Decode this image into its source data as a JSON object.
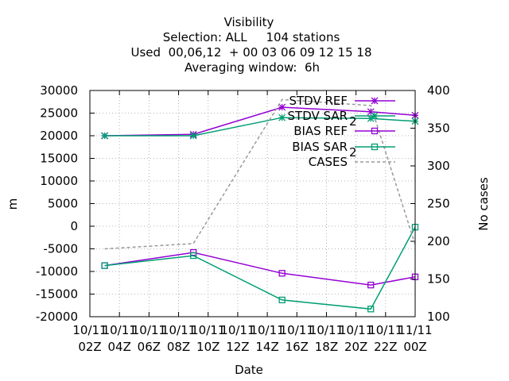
{
  "chart_data": {
    "type": "line",
    "title_lines": [
      "Visibility",
      "Selection: ALL     104 stations",
      "Used  00,06,12  + 00 03 06 09 12 15 18",
      "Averaging window:  6h"
    ],
    "xlabel": "Date",
    "ylabel": "m",
    "y2label": "No cases",
    "xlim": [
      1,
      23
    ],
    "ylim": [
      -20000,
      30000
    ],
    "y2lim": [
      100,
      400
    ],
    "grid": true,
    "legend_position": "top-right",
    "x_ticks": [
      {
        "x": 1,
        "line1": "10/11",
        "line2": "02Z"
      },
      {
        "x": 3,
        "line1": "10/11",
        "line2": "04Z"
      },
      {
        "x": 5,
        "line1": "10/11",
        "line2": "06Z"
      },
      {
        "x": 7,
        "line1": "10/11",
        "line2": "08Z"
      },
      {
        "x": 9,
        "line1": "10/11",
        "line2": "10Z"
      },
      {
        "x": 11,
        "line1": "10/11",
        "line2": "12Z"
      },
      {
        "x": 13,
        "line1": "10/11",
        "line2": "14Z"
      },
      {
        "x": 15,
        "line1": "10/11",
        "line2": "16Z"
      },
      {
        "x": 17,
        "line1": "10/11",
        "line2": "18Z"
      },
      {
        "x": 19,
        "line1": "10/11",
        "line2": "20Z"
      },
      {
        "x": 21,
        "line1": "10/11",
        "line2": "22Z"
      },
      {
        "x": 23,
        "line1": "11/11",
        "line2": "00Z"
      }
    ],
    "y_ticks": [
      "30000",
      "25000",
      "20000",
      "15000",
      "10000",
      "5000",
      "0",
      "-5000",
      "-10000",
      "-15000",
      "-20000"
    ],
    "y_tick_values": [
      30000,
      25000,
      20000,
      15000,
      10000,
      5000,
      0,
      -5000,
      -10000,
      -15000,
      -20000
    ],
    "y2_ticks": [
      "400",
      "350",
      "300",
      "250",
      "200",
      "150",
      "100"
    ],
    "y2_tick_values": [
      400,
      350,
      300,
      250,
      200,
      150,
      100
    ],
    "series": [
      {
        "name": "STDV REF",
        "legend_text": "STDV REF",
        "axis": "y",
        "color": "#9400d3",
        "marker": "star",
        "x": [
          2,
          8,
          14,
          20,
          23
        ],
        "y": [
          20000,
          20300,
          26300,
          25300,
          24500
        ]
      },
      {
        "name": "STDV SAR",
        "legend_text": "STDV SAR",
        "legend_sub": "2",
        "axis": "y",
        "color": "#009e73",
        "marker": "star",
        "x": [
          2,
          8,
          14,
          20,
          23
        ],
        "y": [
          20000,
          20000,
          24000,
          23800,
          23200
        ]
      },
      {
        "name": "BIAS REF",
        "legend_text": "BIAS REF",
        "axis": "y",
        "color": "#9400d3",
        "marker": "square",
        "x": [
          2,
          8,
          14,
          20,
          23
        ],
        "y": [
          -8700,
          -5800,
          -10400,
          -13000,
          -11200
        ]
      },
      {
        "name": "BIAS SAR",
        "legend_text": "BIAS SAR",
        "legend_sub": "2",
        "axis": "y",
        "color": "#009e73",
        "marker": "square",
        "x": [
          2,
          8,
          14,
          20,
          23
        ],
        "y": [
          -8700,
          -6500,
          -16300,
          -18300,
          -200
        ]
      },
      {
        "name": "CASES",
        "legend_text": "CASES",
        "axis": "y2",
        "color": "#999999",
        "marker": "none",
        "dashed": true,
        "x": [
          2,
          8,
          14,
          20,
          23
        ],
        "y": [
          190,
          197,
          388,
          380,
          196
        ]
      }
    ]
  }
}
